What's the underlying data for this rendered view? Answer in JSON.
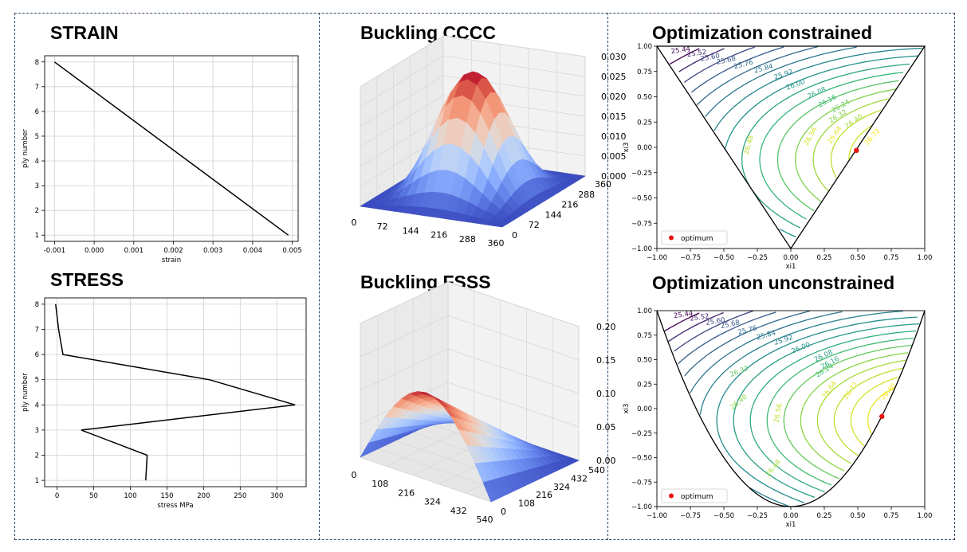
{
  "colors": {
    "frame_border": "#2e4a6b",
    "line": "#000000",
    "grid": "#d0d0d0",
    "optimum": "#e8140f",
    "coolwarm_low": "#3b4cc0",
    "coolwarm_high": "#b40426"
  },
  "panels": {
    "strain": {
      "title": "STRAIN"
    },
    "stress": {
      "title": "STRESS"
    },
    "buckling_cccc": {
      "title": "Buckling CCCC"
    },
    "buckling_fsss": {
      "title": "Buckling FSSS"
    },
    "opt_constrained": {
      "title": "Optimization constrained"
    },
    "opt_unconstrained": {
      "title": "Optimization unconstrained"
    }
  },
  "chart_data": [
    {
      "id": "strain",
      "type": "line",
      "grid": true,
      "xlabel": "strain",
      "ylabel": "ply number",
      "xlim": [
        -0.00125,
        0.00515
      ],
      "ylim": [
        0.75,
        8.25
      ],
      "xticks": [
        -0.001,
        0.0,
        0.001,
        0.002,
        0.003,
        0.004,
        0.005
      ],
      "xticklabels": [
        "-0.001",
        "0.000",
        "0.001",
        "0.002",
        "0.003",
        "0.004",
        "0.005"
      ],
      "yticks": [
        1,
        2,
        3,
        4,
        5,
        6,
        7,
        8
      ],
      "series": [
        {
          "x": [
            -0.001,
            0.0049
          ],
          "y": [
            8,
            1
          ]
        }
      ]
    },
    {
      "id": "stress",
      "type": "line",
      "grid": true,
      "xlabel": "stress MPa",
      "ylabel": "ply number",
      "xlim": [
        -17,
        340
      ],
      "ylim": [
        0.75,
        8.25
      ],
      "xticks": [
        0,
        50,
        100,
        150,
        200,
        250,
        300
      ],
      "yticks": [
        1,
        2,
        3,
        4,
        5,
        6,
        7,
        8
      ],
      "series": [
        {
          "x": [
            -2,
            2,
            8,
            208,
            325,
            33,
            123,
            121
          ],
          "y": [
            8,
            7,
            6,
            5,
            4,
            3,
            2,
            1
          ]
        }
      ]
    },
    {
      "id": "buckling_cccc",
      "type": "surface3d",
      "colormap": "coolwarm",
      "xticks": [
        "0",
        "72",
        "144",
        "216",
        "288",
        "360"
      ],
      "yticks": [
        "0",
        "72",
        "144",
        "216",
        "288",
        "360"
      ],
      "zticks": [
        "0.000",
        "0.005",
        "0.010",
        "0.015",
        "0.020",
        "0.025",
        "0.030"
      ],
      "x_range": [
        0,
        360
      ],
      "y_range": [
        0,
        360
      ],
      "zlim": [
        0,
        0.03
      ],
      "z_peak": 0.03,
      "shape": "clamped-clamped mode, (1-cos) in x and y"
    },
    {
      "id": "buckling_fsss",
      "type": "surface3d",
      "colormap": "coolwarm",
      "xticks": [
        "0",
        "108",
        "216",
        "324",
        "432",
        "540"
      ],
      "yticks": [
        "0",
        "108",
        "216",
        "324",
        "432",
        "540"
      ],
      "zticks": [
        "0.00",
        "0.05",
        "0.10",
        "0.15",
        "0.20"
      ],
      "x_range": [
        0,
        540
      ],
      "y_range": [
        0,
        540
      ],
      "zlim": [
        0,
        0.2
      ],
      "z_peak": 0.13,
      "shape": "half-sine in x, linear rise toward the free edge in y"
    },
    {
      "id": "opt_constrained",
      "type": "contour",
      "colormap": "viridis",
      "xlabel": "xi1",
      "ylabel": "xi3",
      "xlim": [
        -1,
        1
      ],
      "ylim": [
        -1,
        1
      ],
      "xticks": [
        -1.0,
        -0.75,
        -0.5,
        -0.25,
        0.0,
        0.25,
        0.5,
        0.75,
        1.0
      ],
      "yticks": [
        -1.0,
        -0.75,
        -0.5,
        -0.25,
        0.0,
        0.25,
        0.5,
        0.75,
        1.0
      ],
      "levels": [
        25.44,
        25.52,
        25.6,
        25.68,
        25.76,
        25.84,
        25.92,
        26.0,
        26.08,
        26.16,
        26.24,
        26.32,
        26.4,
        26.48,
        26.56,
        26.64,
        26.72
      ],
      "boundary": "triangle",
      "boundary_points": [
        [
          -1,
          1
        ],
        [
          1,
          1
        ],
        [
          0,
          -1
        ]
      ],
      "optimum": {
        "x": 0.49,
        "y": -0.03
      },
      "legend": {
        "label": "optimum",
        "loc": "lower left"
      }
    },
    {
      "id": "opt_unconstrained",
      "type": "contour",
      "colormap": "viridis",
      "xlabel": "xi1",
      "ylabel": "xi3",
      "xlim": [
        -1,
        1
      ],
      "ylim": [
        -1,
        1
      ],
      "xticks": [
        -1.0,
        -0.75,
        -0.5,
        -0.25,
        0.0,
        0.25,
        0.5,
        0.75,
        1.0
      ],
      "yticks": [
        -1.0,
        -0.75,
        -0.5,
        -0.25,
        0.0,
        0.25,
        0.5,
        0.75,
        1.0
      ],
      "levels": [
        25.44,
        25.52,
        25.6,
        25.68,
        25.76,
        25.84,
        25.92,
        26.0,
        26.08,
        26.16,
        26.24,
        26.32,
        26.4,
        26.48,
        26.56,
        26.64,
        26.72,
        26.8
      ],
      "boundary": "parabola",
      "boundary_equation": "xi3 = 2*xi1^2 - 1",
      "optimum": {
        "x": 0.68,
        "y": -0.08
      },
      "legend": {
        "label": "optimum",
        "loc": "lower left"
      }
    }
  ]
}
